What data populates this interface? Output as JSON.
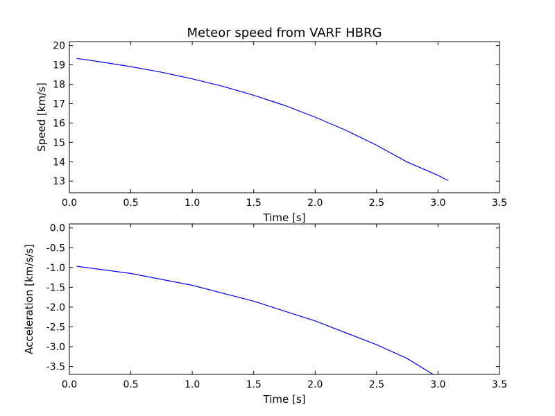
{
  "title": "Meteor speed from  VARF HBRG",
  "colors": {
    "line": "#0000ff",
    "axes": "#000000",
    "background": "#ffffff"
  },
  "chart_data": [
    {
      "type": "line",
      "title": "Meteor speed from  VARF HBRG",
      "xlabel": "Time [s]",
      "ylabel": "Speed [km/s]",
      "xlim": [
        0.0,
        3.5
      ],
      "ylim": [
        12.4,
        20.2
      ],
      "xticks": [
        "0.0",
        "0.5",
        "1.0",
        "1.5",
        "2.0",
        "2.5",
        "3.0",
        "3.5"
      ],
      "xtick_values": [
        0,
        0.5,
        1,
        1.5,
        2,
        2.5,
        3,
        3.5
      ],
      "yticks": [
        "13",
        "14",
        "15",
        "16",
        "17",
        "18",
        "19",
        "20"
      ],
      "ytick_values": [
        13,
        14,
        15,
        16,
        17,
        18,
        19,
        20
      ],
      "grid": false,
      "series": [
        {
          "color": "#0000ff",
          "x": [
            0.06,
            0.25,
            0.5,
            0.75,
            1.0,
            1.25,
            1.5,
            1.75,
            2.0,
            2.25,
            2.5,
            2.75,
            3.0,
            3.08
          ],
          "y": [
            19.33,
            19.16,
            18.91,
            18.62,
            18.28,
            17.89,
            17.43,
            16.91,
            16.3,
            15.62,
            14.85,
            13.98,
            13.3,
            13.03
          ]
        }
      ]
    },
    {
      "type": "line",
      "xlabel": "Time [s]",
      "ylabel": "Acceleration [km/s/s]",
      "xlim": [
        0.0,
        3.5
      ],
      "ylim": [
        -3.7,
        0.1
      ],
      "xticks": [
        "0.0",
        "0.5",
        "1.0",
        "1.5",
        "2.0",
        "2.5",
        "3.0",
        "3.5"
      ],
      "xtick_values": [
        0,
        0.5,
        1,
        1.5,
        2,
        2.5,
        3,
        3.5
      ],
      "yticks": [
        "0.0",
        "-0.5",
        "-1.0",
        "-1.5",
        "-2.0",
        "-2.5",
        "-3.0",
        "-3.5"
      ],
      "ytick_values": [
        0,
        -0.5,
        -1,
        -1.5,
        -2,
        -2.5,
        -3,
        -3.5
      ],
      "grid": false,
      "series": [
        {
          "color": "#0000ff",
          "x": [
            0.06,
            0.5,
            1.0,
            1.5,
            2.0,
            2.5,
            2.75,
            2.96
          ],
          "y": [
            -0.97,
            -1.15,
            -1.45,
            -1.85,
            -2.35,
            -2.95,
            -3.3,
            -3.7
          ]
        }
      ]
    }
  ]
}
